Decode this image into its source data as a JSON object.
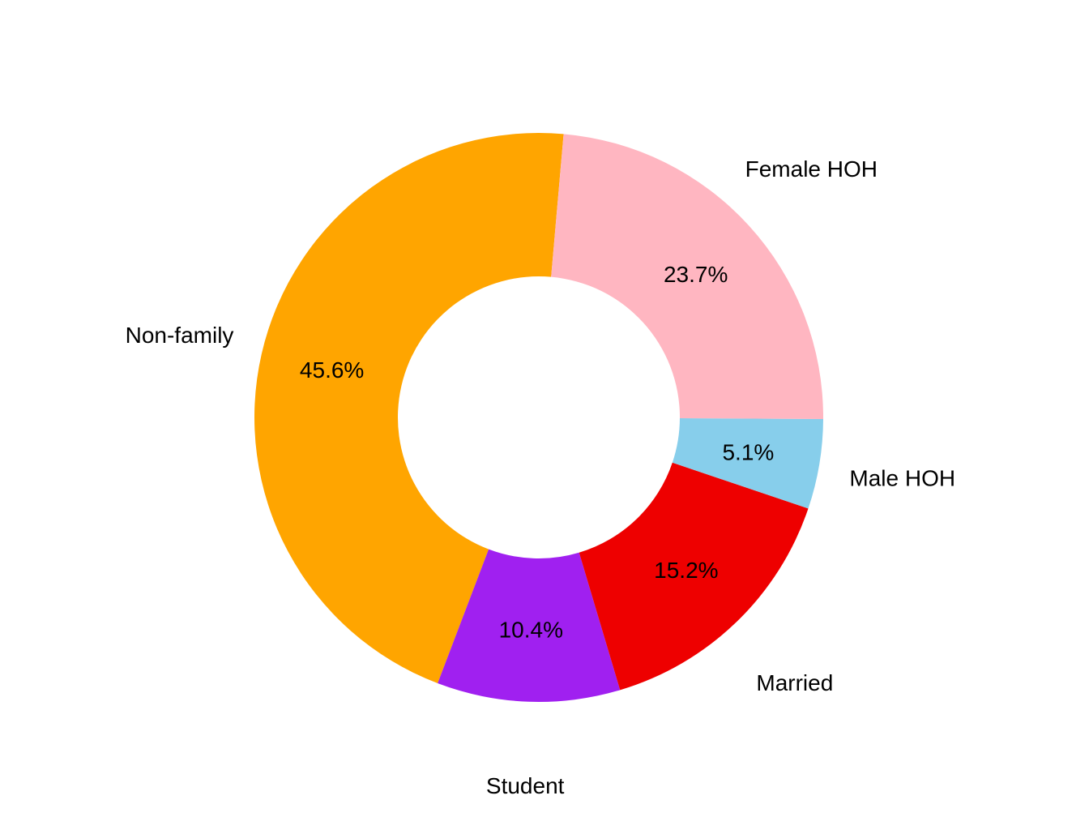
{
  "chart_data": {
    "type": "pie",
    "subtype": "donut",
    "title": "",
    "legend": "none",
    "categories": [
      "Non-family",
      "Student",
      "Married",
      "Male HOH",
      "Female HOH"
    ],
    "values": [
      45.6,
      10.4,
      15.2,
      5.1,
      23.7
    ],
    "percent_labels": [
      "45.6%",
      "10.4%",
      "15.2%",
      "5.1%",
      "23.7%"
    ],
    "colors": [
      "#FFA500",
      "#A020F0",
      "#EE0000",
      "#87CEEB",
      "#FFB6C1"
    ]
  }
}
